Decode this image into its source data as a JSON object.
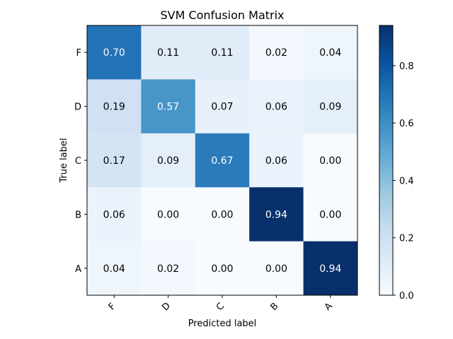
{
  "chart_data": {
    "type": "heatmap",
    "title": "SVM Confusion Matrix",
    "xlabel": "Predicted label",
    "ylabel": "True label",
    "x_categories": [
      "F",
      "D",
      "C",
      "B",
      "A"
    ],
    "y_categories": [
      "F",
      "D",
      "C",
      "B",
      "A"
    ],
    "values": [
      [
        0.7,
        0.11,
        0.11,
        0.02,
        0.04
      ],
      [
        0.19,
        0.57,
        0.07,
        0.06,
        0.09
      ],
      [
        0.17,
        0.09,
        0.67,
        0.06,
        0.0
      ],
      [
        0.06,
        0.0,
        0.0,
        0.94,
        0.0
      ],
      [
        0.04,
        0.02,
        0.0,
        0.0,
        0.94
      ]
    ],
    "value_format": "0.00",
    "colormap": "Blues",
    "color_range": [
      0.0,
      0.94
    ],
    "colorbar_ticks": [
      "0.0",
      "0.2",
      "0.4",
      "0.6",
      "0.8"
    ],
    "x_tick_rotation": "45 degrees"
  }
}
